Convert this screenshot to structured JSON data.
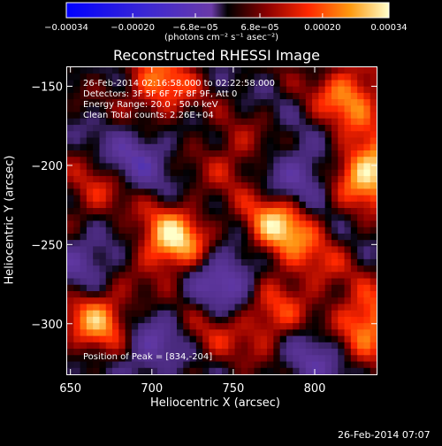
{
  "chart_data": {
    "type": "heatmap",
    "title": "Reconstructed RHESSI Image",
    "xlabel": "Heliocentric X (arcsec)",
    "ylabel": "Heliocentric Y (arcsec)",
    "x_range": [
      648,
      838
    ],
    "y_range": [
      -332,
      -138
    ],
    "x_ticks": [
      650,
      700,
      750,
      800
    ],
    "y_ticks": [
      -150,
      -200,
      -250,
      -300
    ],
    "x_tick_labels": [
      "650",
      "700",
      "750",
      "800"
    ],
    "y_tick_labels": [
      "−150",
      "−200",
      "−250",
      "−300"
    ],
    "colorbar": {
      "range": [
        -0.00034,
        0.00034
      ],
      "tick_values": [
        -0.00034,
        -0.0002,
        -6.8e-05,
        6.8e-05,
        0.0002,
        0.00034
      ],
      "tick_labels": [
        "−0.00034",
        "−0.00020",
        "−6.8e−05",
        "6.8e−05",
        "0.00020",
        "0.00034"
      ],
      "unit_label": "(photons cm⁻² s⁻¹ asec⁻²)"
    },
    "annotations": [
      "26-Feb-2014 02:16:58.000 to 02:22:58.000",
      "Detectors: 3F 5F 6F 7F 8F 9F, Att 0",
      "Energy Range: 20.0 - 50.0 keV",
      "Clean   Total counts: 2.26E+04"
    ],
    "peak_label": "Position of Peak = [834,-204]",
    "peak": [
      834,
      -204
    ],
    "sources": [
      {
        "x": 713,
        "y": -248,
        "amp": 0.00032
      },
      {
        "x": 778,
        "y": -238,
        "amp": 0.0003
      },
      {
        "x": 834,
        "y": -204,
        "amp": 0.00034
      },
      {
        "x": 822,
        "y": -156,
        "amp": 0.00024
      },
      {
        "x": 705,
        "y": -150,
        "amp": 0.00022
      },
      {
        "x": 668,
        "y": -297,
        "amp": 0.00026
      },
      {
        "x": 833,
        "y": -300,
        "amp": 0.00027
      },
      {
        "x": 772,
        "y": -297,
        "amp": 0.00018
      },
      {
        "x": 750,
        "y": -195,
        "amp": 0.00012
      },
      {
        "x": 665,
        "y": -218,
        "amp": 0.00014
      },
      {
        "x": 800,
        "y": -265,
        "amp": 0.00012
      },
      {
        "x": 735,
        "y": -308,
        "amp": 0.0001
      }
    ],
    "negative_regions": [
      {
        "x": 745,
        "y": -272,
        "amp": -0.00022
      },
      {
        "x": 790,
        "y": -208,
        "amp": -0.00018
      },
      {
        "x": 690,
        "y": -195,
        "amp": -0.00016
      },
      {
        "x": 660,
        "y": -260,
        "amp": -0.00014
      },
      {
        "x": 700,
        "y": -315,
        "amp": -0.00016
      },
      {
        "x": 800,
        "y": -320,
        "amp": -0.00014
      }
    ]
  },
  "footer": {
    "timestamp": "26-Feb-2014 07:07"
  }
}
